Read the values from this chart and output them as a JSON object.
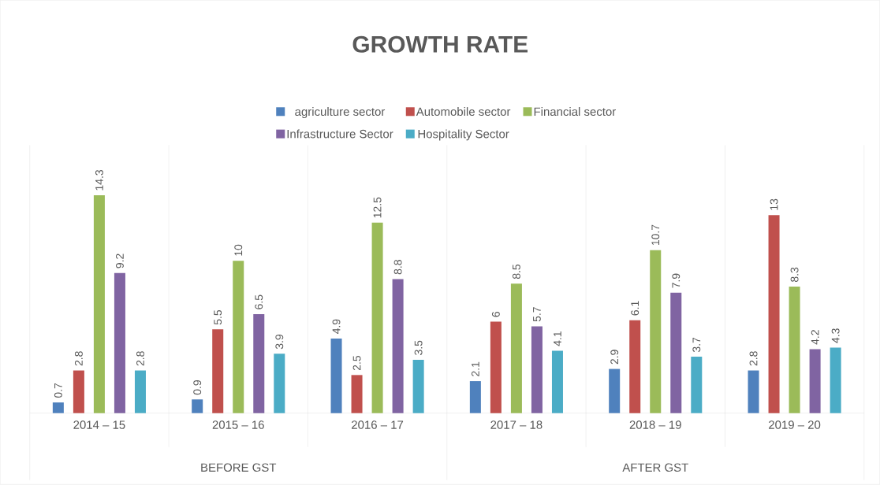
{
  "chart_data": {
    "type": "bar",
    "title": "GROWTH RATE",
    "categories": [
      "2014 – 15",
      "2015 – 16",
      "2016 – 17",
      "2017 – 18",
      "2018 – 19",
      "2019 – 20"
    ],
    "series": [
      {
        "name": "agriculture sector",
        "color": "#4f81bd",
        "values": [
          0.7,
          0.9,
          4.9,
          2.1,
          2.9,
          2.8
        ]
      },
      {
        "name": "Automobile sector",
        "color": "#c0504d",
        "values": [
          2.8,
          5.5,
          2.5,
          6,
          6.1,
          13
        ]
      },
      {
        "name": "Financial sector",
        "color": "#9bbb59",
        "values": [
          14.3,
          10,
          12.5,
          8.5,
          10.7,
          8.3
        ]
      },
      {
        "name": "Infrastructure Sector",
        "color": "#8064a2",
        "values": [
          9.2,
          6.5,
          8.8,
          5.7,
          7.9,
          4.2
        ]
      },
      {
        "name": "Hospitality Sector",
        "color": "#4bacc6",
        "values": [
          2.8,
          3.9,
          3.5,
          4.1,
          3.7,
          4.3
        ]
      }
    ],
    "annotations": [
      "BEFORE GST",
      "AFTER GST"
    ],
    "data_labels": true,
    "legend": "top"
  }
}
